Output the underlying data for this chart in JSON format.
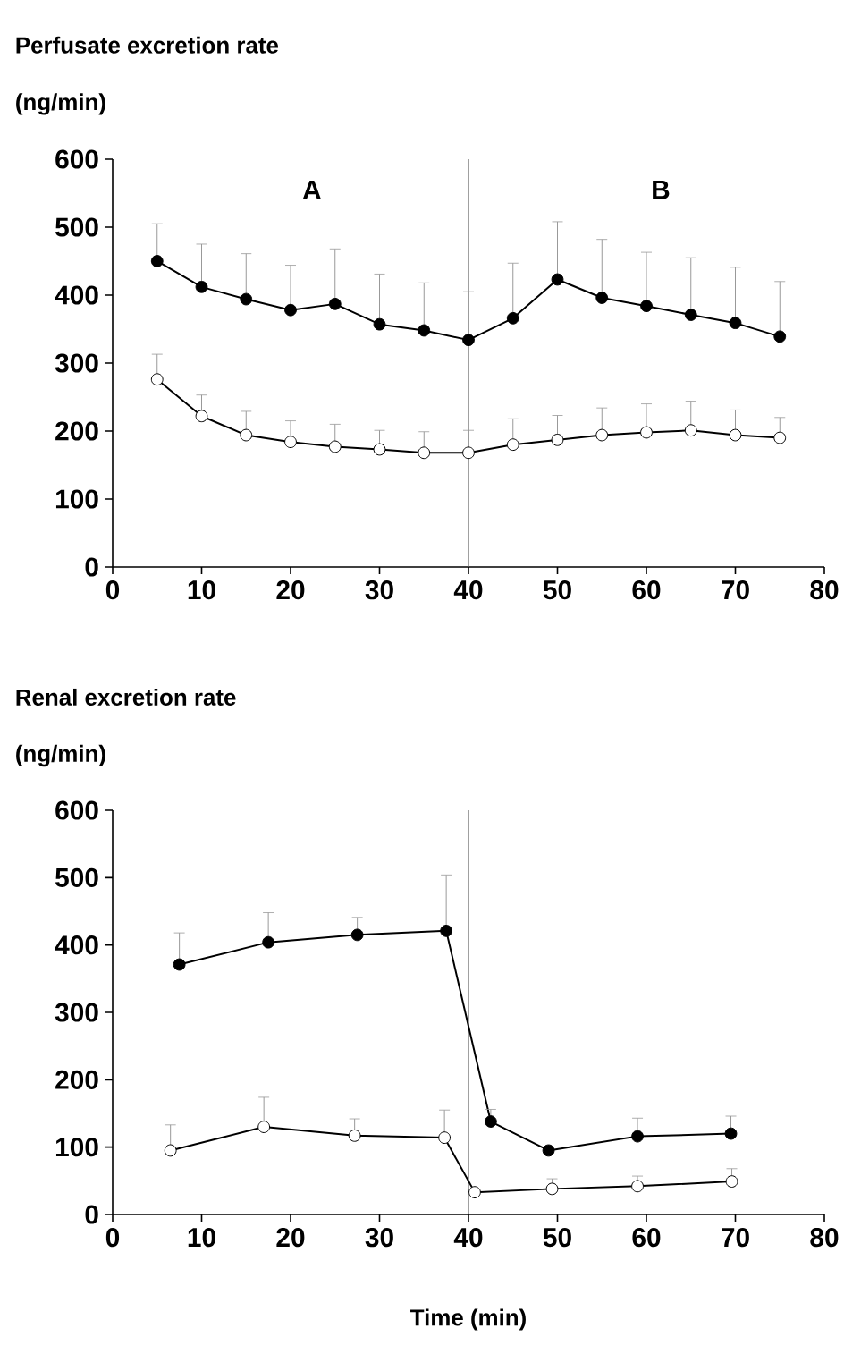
{
  "chart_data": [
    {
      "type": "line",
      "title": "Perfusate excretion rate",
      "ylabel": "(ng/min)",
      "annotations": [
        "A",
        "B"
      ],
      "xlim": [
        0,
        80
      ],
      "xticks": [
        0,
        10,
        20,
        30,
        40,
        50,
        60,
        70,
        80
      ],
      "ylim": [
        0,
        600
      ],
      "yticks": [
        0,
        100,
        200,
        300,
        400,
        500,
        600
      ],
      "marker": "circle",
      "grid": false,
      "ref_lines": [
        {
          "axis": "x",
          "value": 40,
          "color": "#606060"
        }
      ],
      "series": [
        {
          "color": "#000000",
          "x": [
            5,
            10,
            15,
            20,
            25,
            30,
            35,
            40,
            45,
            50,
            55,
            60,
            65,
            70,
            75
          ],
          "values": [
            450,
            412,
            394,
            378,
            387,
            357,
            348,
            334,
            366,
            423,
            396,
            384,
            371,
            359,
            339
          ],
          "errors": [
            [
              450,
              505
            ],
            [
              412,
              475
            ],
            [
              394,
              461
            ],
            [
              378,
              444
            ],
            [
              387,
              468
            ],
            [
              357,
              431
            ],
            [
              348,
              418
            ],
            [
              334,
              405
            ],
            [
              366,
              447
            ],
            [
              423,
              508
            ],
            [
              396,
              482
            ],
            [
              384,
              463
            ],
            [
              371,
              455
            ],
            [
              359,
              441
            ],
            [
              339,
              420
            ]
          ]
        },
        {
          "color": "#000000",
          "x": [
            5,
            10,
            15,
            20,
            25,
            30,
            35,
            40,
            45,
            50,
            55,
            60,
            65,
            70,
            75
          ],
          "values": [
            276,
            222,
            194,
            184,
            177,
            173,
            168,
            168,
            180,
            187,
            194,
            198,
            201,
            194,
            190
          ],
          "errors": [
            [
              276,
              313
            ],
            [
              222,
              253
            ],
            [
              194,
              229
            ],
            [
              184,
              215
            ],
            [
              177,
              210
            ],
            [
              173,
              201
            ],
            [
              168,
              199
            ],
            [
              168,
              201
            ],
            [
              180,
              218
            ],
            [
              187,
              223
            ],
            [
              194,
              234
            ],
            [
              198,
              240
            ],
            [
              201,
              244
            ],
            [
              194,
              231
            ],
            [
              190,
              220
            ]
          ]
        }
      ]
    },
    {
      "type": "line",
      "title": "Renal excretion rate",
      "ylabel": "(ng/min)",
      "xlabel": "Time (min)",
      "xlim": [
        0,
        80
      ],
      "xticks": [
        0,
        10,
        20,
        30,
        40,
        50,
        60,
        70,
        80
      ],
      "ylim": [
        0,
        600
      ],
      "yticks": [
        0,
        100,
        200,
        300,
        400,
        500,
        600
      ],
      "marker": "circle",
      "grid": false,
      "ref_lines": [
        {
          "axis": "x",
          "value": 40,
          "color": "#606060"
        }
      ],
      "series": [
        {
          "color": "#000000",
          "x": [
            7.5,
            17.5,
            27.5,
            37.5,
            42.5,
            49,
            59,
            69.5
          ],
          "values": [
            371,
            404,
            415,
            421,
            138,
            95,
            116,
            120
          ],
          "errors": [
            [
              371,
              418
            ],
            [
              404,
              448
            ],
            [
              415,
              441
            ],
            [
              421,
              504
            ],
            [
              138,
              156
            ],
            null,
            [
              116,
              143
            ],
            [
              120,
              146
            ]
          ]
        },
        {
          "color": "#000000",
          "x": [
            6.5,
            17,
            27.2,
            37.3,
            40.7,
            49.4,
            59,
            69.6
          ],
          "values": [
            95,
            130,
            117,
            114,
            33,
            38,
            42,
            49
          ],
          "errors": [
            [
              95,
              133
            ],
            [
              130,
              174
            ],
            [
              117,
              142
            ],
            [
              114,
              155
            ],
            null,
            [
              38,
              53
            ],
            [
              42,
              57
            ],
            [
              49,
              68
            ]
          ]
        }
      ]
    }
  ]
}
